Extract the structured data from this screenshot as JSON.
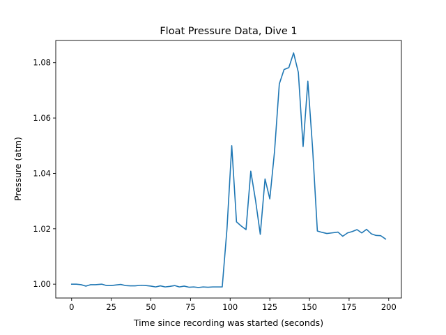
{
  "chart_data": {
    "type": "line",
    "title": "Float Pressure Data, Dive 1",
    "xlabel": "Time since recording was started (seconds)",
    "ylabel": "Pressure (atm)",
    "xlim": [
      -10,
      208
    ],
    "ylim": [
      0.995,
      1.088
    ],
    "xticks": [
      0,
      25,
      50,
      75,
      100,
      125,
      150,
      175,
      200
    ],
    "yticks": [
      1.0,
      1.02,
      1.04,
      1.06,
      1.08
    ],
    "ytick_labels": [
      "1.00",
      "1.02",
      "1.04",
      "1.06",
      "1.08"
    ],
    "grid": false,
    "line_color": "#1f77b4",
    "series": [
      {
        "x": [
          0,
          3,
          6,
          9,
          12,
          15,
          19,
          22,
          25,
          28,
          31,
          34,
          37,
          40,
          44,
          47,
          50,
          53,
          56,
          59,
          62,
          65,
          68,
          71,
          74,
          77,
          80,
          83,
          86,
          89,
          92,
          95,
          98,
          101,
          104,
          107,
          110,
          113,
          116,
          119,
          122,
          125,
          128,
          131,
          134,
          137,
          140,
          143,
          146,
          149,
          152,
          155,
          158,
          161,
          164,
          168,
          171,
          174,
          177,
          180,
          183,
          186,
          189,
          192,
          195,
          198
        ],
        "y": [
          1.0,
          1.0,
          0.9998,
          0.9993,
          0.9998,
          0.9998,
          1.0,
          0.9995,
          0.9995,
          0.9997,
          0.9999,
          0.9995,
          0.9994,
          0.9994,
          0.9996,
          0.9995,
          0.9993,
          0.999,
          0.9994,
          0.999,
          0.9992,
          0.9995,
          0.999,
          0.9993,
          0.9989,
          0.999,
          0.9988,
          0.999,
          0.9989,
          0.999,
          0.999,
          0.999,
          1.02,
          1.05,
          1.0225,
          1.021,
          1.0197,
          1.0408,
          1.0303,
          1.018,
          1.038,
          1.0308,
          1.048,
          1.0723,
          1.0775,
          1.0782,
          1.0835,
          1.0765,
          1.0497,
          1.0733,
          1.049,
          1.0192,
          1.0187,
          1.0183,
          1.0185,
          1.0188,
          1.0173,
          1.0185,
          1.019,
          1.0197,
          1.0185,
          1.0198,
          1.0182,
          1.0176,
          1.0175,
          1.0163
        ]
      }
    ]
  }
}
